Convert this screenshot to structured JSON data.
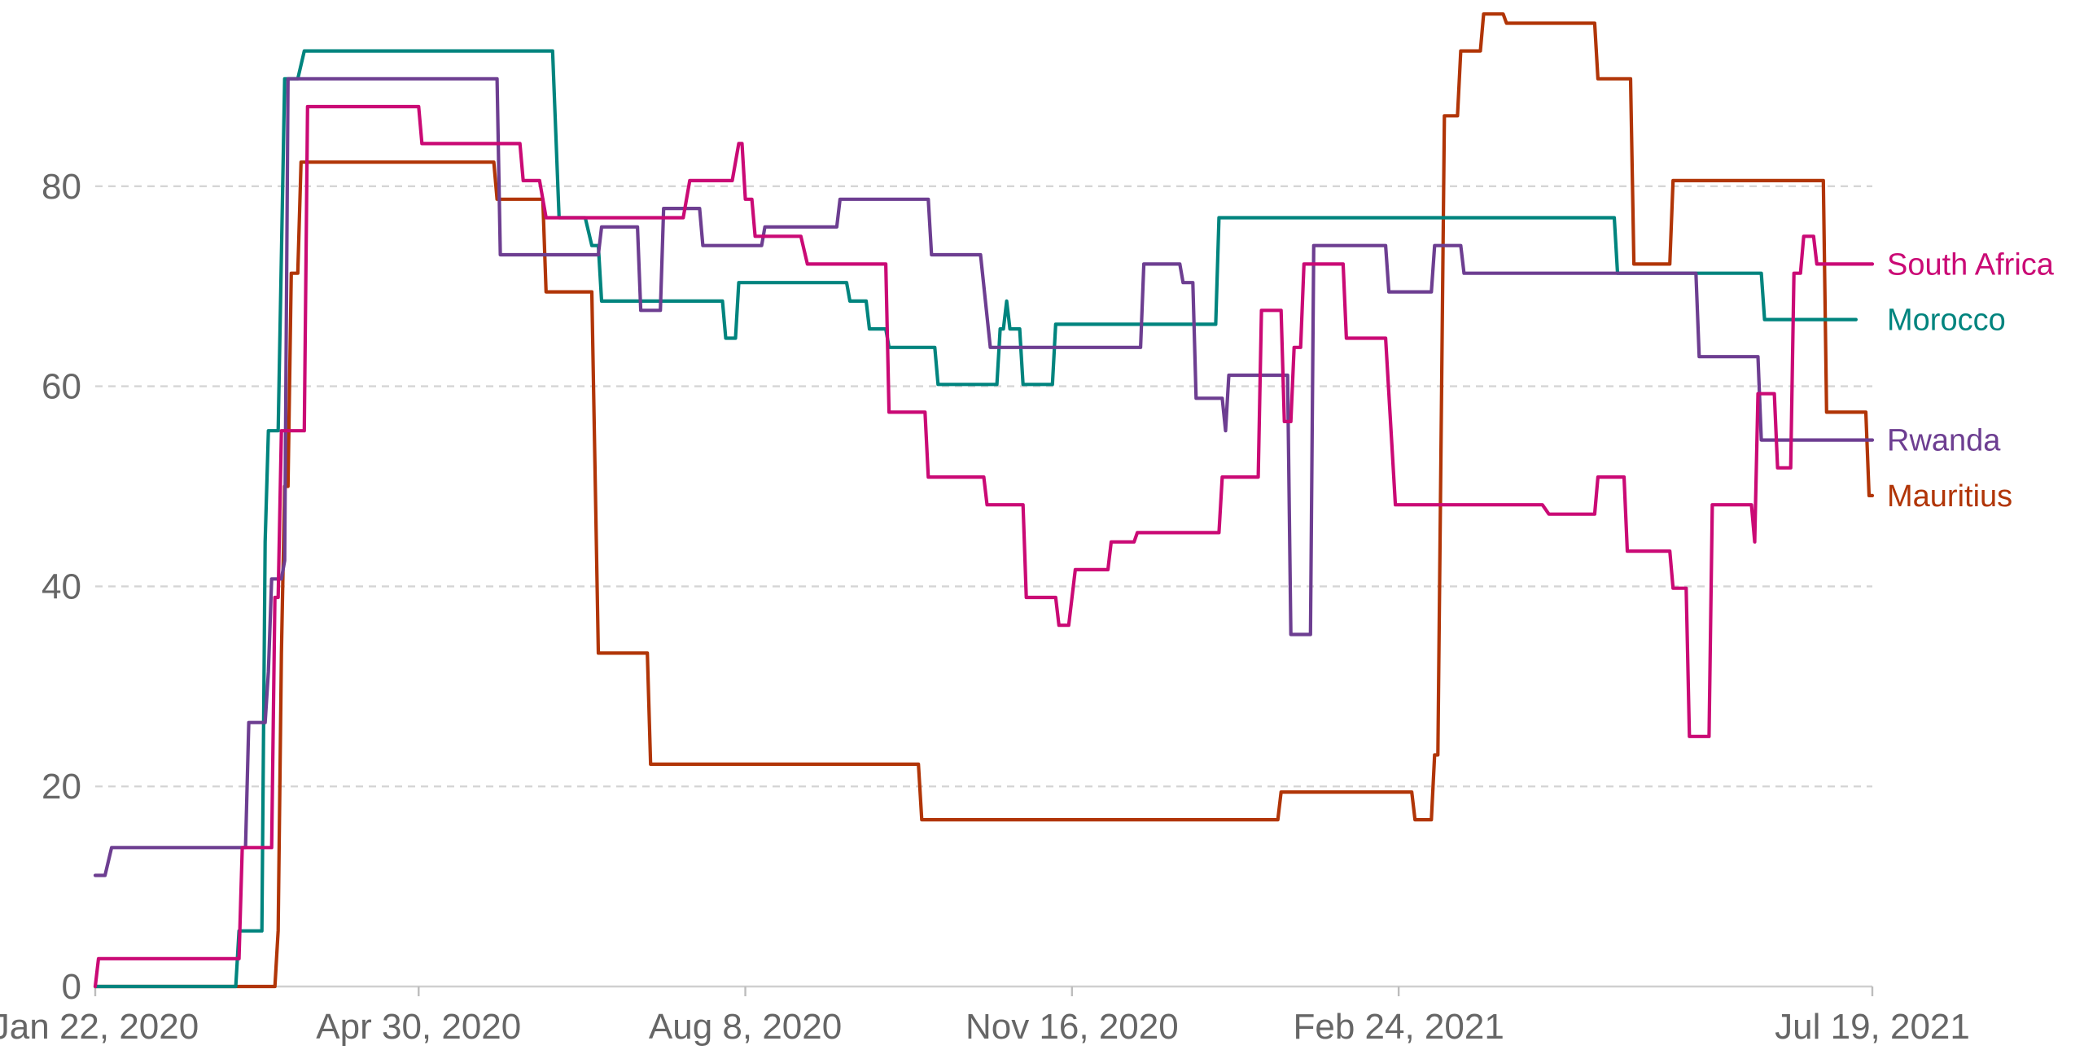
{
  "chart_data": {
    "type": "line",
    "title": "",
    "xlabel": "",
    "ylabel": "",
    "x_domain": [
      "2020-01-22",
      "2021-07-19"
    ],
    "ylim": [
      0,
      97
    ],
    "y_ticks": [
      0,
      20,
      40,
      60,
      80
    ],
    "y_tick_labels": [
      "0",
      "20",
      "40",
      "60",
      "80"
    ],
    "x_ticks": [
      "2020-01-22",
      "2020-04-30",
      "2020-08-08",
      "2020-11-16",
      "2021-02-24",
      "2021-07-19"
    ],
    "x_tick_labels": [
      "Jan 22, 2020",
      "Apr 30, 2020",
      "Aug 8, 2020",
      "Nov 16, 2020",
      "Feb 24, 2021",
      "Jul 19, 2021"
    ],
    "grid": "horizontal dashed",
    "legend": "line-end labels",
    "series": [
      {
        "name": "Mauritius",
        "color": "#b13507",
        "points": [
          [
            "2020-01-22",
            0
          ],
          [
            "2020-03-17",
            0
          ],
          [
            "2020-03-18",
            5.6
          ],
          [
            "2020-03-19",
            33.33
          ],
          [
            "2020-03-20",
            50
          ],
          [
            "2020-03-21",
            50
          ],
          [
            "2020-03-22",
            71.3
          ],
          [
            "2020-03-24",
            71.3
          ],
          [
            "2020-03-25",
            82.41
          ],
          [
            "2020-05-23",
            82.41
          ],
          [
            "2020-05-24",
            78.7
          ],
          [
            "2020-06-07",
            78.7
          ],
          [
            "2020-06-08",
            69.44
          ],
          [
            "2020-06-22",
            69.44
          ],
          [
            "2020-06-24",
            33.33
          ],
          [
            "2020-07-09",
            33.33
          ],
          [
            "2020-07-10",
            22.22
          ],
          [
            "2020-09-30",
            22.22
          ],
          [
            "2020-10-01",
            16.67
          ],
          [
            "2021-01-18",
            16.67
          ],
          [
            "2021-01-19",
            19.44
          ],
          [
            "2021-02-28",
            19.44
          ],
          [
            "2021-03-01",
            16.67
          ],
          [
            "2021-03-06",
            16.67
          ],
          [
            "2021-03-07",
            23.15
          ],
          [
            "2021-03-08",
            23.15
          ],
          [
            "2021-03-10",
            87.04
          ],
          [
            "2021-03-14",
            87.04
          ],
          [
            "2021-03-15",
            93.52
          ],
          [
            "2021-03-21",
            93.52
          ],
          [
            "2021-03-22",
            97.22
          ],
          [
            "2021-03-28",
            97.22
          ],
          [
            "2021-03-29",
            96.3
          ],
          [
            "2021-04-25",
            96.3
          ],
          [
            "2021-04-26",
            90.74
          ],
          [
            "2021-05-06",
            90.74
          ],
          [
            "2021-05-07",
            72.22
          ],
          [
            "2021-05-18",
            72.22
          ],
          [
            "2021-05-19",
            80.56
          ],
          [
            "2021-07-04",
            80.56
          ],
          [
            "2021-07-05",
            57.41
          ],
          [
            "2021-07-17",
            57.41
          ],
          [
            "2021-07-18",
            49.07
          ],
          [
            "2021-07-19",
            49.07
          ]
        ]
      },
      {
        "name": "Morocco",
        "color": "#00847e",
        "points": [
          [
            "2020-01-22",
            0
          ],
          [
            "2020-03-05",
            0
          ],
          [
            "2020-03-06",
            5.56
          ],
          [
            "2020-03-13",
            5.56
          ],
          [
            "2020-03-14",
            44.44
          ],
          [
            "2020-03-15",
            55.56
          ],
          [
            "2020-03-18",
            55.56
          ],
          [
            "2020-03-20",
            90.74
          ],
          [
            "2020-03-24",
            90.74
          ],
          [
            "2020-03-26",
            93.52
          ],
          [
            "2020-06-10",
            93.52
          ],
          [
            "2020-06-12",
            76.85
          ],
          [
            "2020-06-20",
            76.85
          ],
          [
            "2020-06-22",
            74.07
          ],
          [
            "2020-06-24",
            74.07
          ],
          [
            "2020-06-25",
            68.52
          ],
          [
            "2020-08-01",
            68.52
          ],
          [
            "2020-08-02",
            64.81
          ],
          [
            "2020-08-05",
            64.81
          ],
          [
            "2020-08-06",
            70.37
          ],
          [
            "2020-09-08",
            70.37
          ],
          [
            "2020-09-09",
            68.52
          ],
          [
            "2020-09-14",
            68.52
          ],
          [
            "2020-09-15",
            65.74
          ],
          [
            "2020-09-20",
            65.74
          ],
          [
            "2020-09-21",
            63.89
          ],
          [
            "2020-10-05",
            63.89
          ],
          [
            "2020-10-06",
            60.19
          ],
          [
            "2020-10-24",
            60.19
          ],
          [
            "2020-10-25",
            65.74
          ],
          [
            "2020-10-26",
            65.74
          ],
          [
            "2020-10-27",
            68.52
          ],
          [
            "2020-10-28",
            65.74
          ],
          [
            "2020-10-31",
            65.74
          ],
          [
            "2020-11-01",
            60.19
          ],
          [
            "2020-11-10",
            60.19
          ],
          [
            "2020-11-11",
            66.2
          ],
          [
            "2020-12-30",
            66.2
          ],
          [
            "2020-12-31",
            76.85
          ],
          [
            "2021-05-01",
            76.85
          ],
          [
            "2021-05-02",
            71.3
          ],
          [
            "2021-06-15",
            71.3
          ],
          [
            "2021-06-16",
            66.67
          ],
          [
            "2021-07-14",
            66.67
          ]
        ]
      },
      {
        "name": "Rwanda",
        "color": "#6d3e91",
        "points": [
          [
            "2020-01-22",
            11.11
          ],
          [
            "2020-01-25",
            11.11
          ],
          [
            "2020-01-27",
            13.89
          ],
          [
            "2020-03-08",
            13.89
          ],
          [
            "2020-03-09",
            26.39
          ],
          [
            "2020-03-14",
            26.39
          ],
          [
            "2020-03-15",
            31.48
          ],
          [
            "2020-03-16",
            40.74
          ],
          [
            "2020-03-19",
            40.74
          ],
          [
            "2020-03-20",
            42.59
          ],
          [
            "2020-03-21",
            90.74
          ],
          [
            "2020-05-24",
            90.74
          ],
          [
            "2020-05-25",
            73.15
          ],
          [
            "2020-06-24",
            73.15
          ],
          [
            "2020-06-25",
            75.93
          ],
          [
            "2020-07-06",
            75.93
          ],
          [
            "2020-07-07",
            67.59
          ],
          [
            "2020-07-13",
            67.59
          ],
          [
            "2020-07-14",
            77.78
          ],
          [
            "2020-07-25",
            77.78
          ],
          [
            "2020-07-26",
            74.07
          ],
          [
            "2020-08-13",
            74.07
          ],
          [
            "2020-08-14",
            75.93
          ],
          [
            "2020-09-05",
            75.93
          ],
          [
            "2020-09-06",
            78.7
          ],
          [
            "2020-10-03",
            78.7
          ],
          [
            "2020-10-04",
            73.15
          ],
          [
            "2020-10-19",
            73.15
          ],
          [
            "2020-10-22",
            63.89
          ],
          [
            "2020-12-07",
            63.89
          ],
          [
            "2020-12-08",
            72.22
          ],
          [
            "2020-12-19",
            72.22
          ],
          [
            "2020-12-20",
            70.37
          ],
          [
            "2020-12-23",
            70.37
          ],
          [
            "2020-12-24",
            58.8
          ],
          [
            "2021-01-01",
            58.8
          ],
          [
            "2021-01-02",
            55.56
          ],
          [
            "2021-01-03",
            61.11
          ],
          [
            "2021-01-21",
            61.11
          ],
          [
            "2021-01-22",
            35.19
          ],
          [
            "2021-01-28",
            35.19
          ],
          [
            "2021-01-29",
            74.07
          ],
          [
            "2021-02-20",
            74.07
          ],
          [
            "2021-02-21",
            69.44
          ],
          [
            "2021-03-06",
            69.44
          ],
          [
            "2021-03-07",
            74.07
          ],
          [
            "2021-03-15",
            74.07
          ],
          [
            "2021-03-16",
            71.3
          ],
          [
            "2021-05-26",
            71.3
          ],
          [
            "2021-05-27",
            62.96
          ],
          [
            "2021-06-14",
            62.96
          ],
          [
            "2021-06-15",
            54.63
          ],
          [
            "2021-07-19",
            54.63
          ]
        ]
      },
      {
        "name": "South Africa",
        "color": "#ca0a75",
        "points": [
          [
            "2020-01-22",
            0
          ],
          [
            "2020-01-23",
            2.78
          ],
          [
            "2020-03-06",
            2.78
          ],
          [
            "2020-03-07",
            13.89
          ],
          [
            "2020-03-16",
            13.89
          ],
          [
            "2020-03-17",
            38.89
          ],
          [
            "2020-03-18",
            38.89
          ],
          [
            "2020-03-19",
            55.56
          ],
          [
            "2020-03-26",
            55.56
          ],
          [
            "2020-03-27",
            87.96
          ],
          [
            "2020-04-30",
            87.96
          ],
          [
            "2020-05-01",
            84.26
          ],
          [
            "2020-05-31",
            84.26
          ],
          [
            "2020-06-01",
            80.56
          ],
          [
            "2020-06-06",
            80.56
          ],
          [
            "2020-06-08",
            76.85
          ],
          [
            "2020-07-20",
            76.85
          ],
          [
            "2020-07-22",
            80.56
          ],
          [
            "2020-08-04",
            80.56
          ],
          [
            "2020-08-06",
            84.26
          ],
          [
            "2020-08-07",
            84.26
          ],
          [
            "2020-08-08",
            78.7
          ],
          [
            "2020-08-10",
            78.7
          ],
          [
            "2020-08-11",
            75
          ],
          [
            "2020-08-25",
            75
          ],
          [
            "2020-08-27",
            72.22
          ],
          [
            "2020-09-20",
            72.22
          ],
          [
            "2020-09-21",
            57.41
          ],
          [
            "2020-10-02",
            57.41
          ],
          [
            "2020-10-03",
            50.93
          ],
          [
            "2020-10-20",
            50.93
          ],
          [
            "2020-10-21",
            48.15
          ],
          [
            "2020-11-01",
            48.15
          ],
          [
            "2020-11-02",
            38.89
          ],
          [
            "2020-11-11",
            38.89
          ],
          [
            "2020-11-12",
            36.11
          ],
          [
            "2020-11-15",
            36.11
          ],
          [
            "2020-11-17",
            41.67
          ],
          [
            "2020-11-27",
            41.67
          ],
          [
            "2020-11-28",
            44.44
          ],
          [
            "2020-12-05",
            44.44
          ],
          [
            "2020-12-06",
            45.37
          ],
          [
            "2020-12-31",
            45.37
          ],
          [
            "2021-01-01",
            50.93
          ],
          [
            "2021-01-12",
            50.93
          ],
          [
            "2021-01-13",
            67.59
          ],
          [
            "2021-01-19",
            67.59
          ],
          [
            "2021-01-20",
            56.48
          ],
          [
            "2021-01-22",
            56.48
          ],
          [
            "2021-01-23",
            63.89
          ],
          [
            "2021-01-25",
            63.89
          ],
          [
            "2021-01-26",
            72.22
          ],
          [
            "2021-02-07",
            72.22
          ],
          [
            "2021-02-08",
            64.81
          ],
          [
            "2021-02-20",
            64.81
          ],
          [
            "2021-02-23",
            48.15
          ],
          [
            "2021-04-09",
            48.15
          ],
          [
            "2021-04-11",
            47.22
          ],
          [
            "2021-04-25",
            47.22
          ],
          [
            "2021-04-26",
            50.93
          ],
          [
            "2021-05-04",
            50.93
          ],
          [
            "2021-05-05",
            43.52
          ],
          [
            "2021-05-18",
            43.52
          ],
          [
            "2021-05-19",
            39.81
          ],
          [
            "2021-05-23",
            39.81
          ],
          [
            "2021-05-24",
            25
          ],
          [
            "2021-05-30",
            25
          ],
          [
            "2021-05-31",
            48.15
          ],
          [
            "2021-06-12",
            48.15
          ],
          [
            "2021-06-13",
            44.44
          ],
          [
            "2021-06-14",
            59.26
          ],
          [
            "2021-06-19",
            59.26
          ],
          [
            "2021-06-20",
            51.85
          ],
          [
            "2021-06-24",
            51.85
          ],
          [
            "2021-06-25",
            71.3
          ],
          [
            "2021-06-27",
            71.3
          ],
          [
            "2021-06-28",
            75
          ],
          [
            "2021-07-01",
            75
          ],
          [
            "2021-07-02",
            72.22
          ],
          [
            "2021-07-19",
            72.22
          ]
        ]
      }
    ]
  }
}
